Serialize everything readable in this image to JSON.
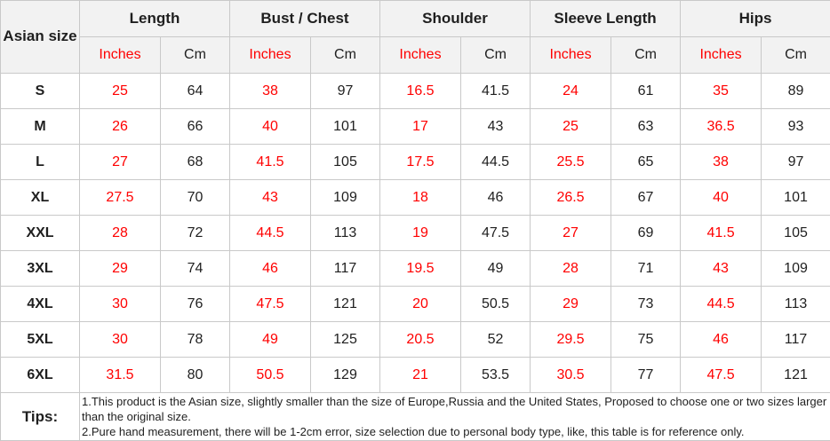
{
  "table": {
    "corner_label": "Asian size",
    "groups": [
      {
        "label": "Length",
        "inches_label": "Inches",
        "cm_label": "Cm"
      },
      {
        "label": "Bust / Chest",
        "inches_label": "Inches",
        "cm_label": "Cm"
      },
      {
        "label": "Shoulder",
        "inches_label": "Inches",
        "cm_label": "Cm"
      },
      {
        "label": "Sleeve Length",
        "inches_label": "Inches",
        "cm_label": "Cm"
      },
      {
        "label": "Hips",
        "inches_label": "Inches",
        "cm_label": "Cm"
      }
    ],
    "rows": [
      {
        "size": "S",
        "values": [
          "25",
          "64",
          "38",
          "97",
          "16.5",
          "41.5",
          "24",
          "61",
          "35",
          "89"
        ]
      },
      {
        "size": "M",
        "values": [
          "26",
          "66",
          "40",
          "101",
          "17",
          "43",
          "25",
          "63",
          "36.5",
          "93"
        ]
      },
      {
        "size": "L",
        "values": [
          "27",
          "68",
          "41.5",
          "105",
          "17.5",
          "44.5",
          "25.5",
          "65",
          "38",
          "97"
        ]
      },
      {
        "size": "XL",
        "values": [
          "27.5",
          "70",
          "43",
          "109",
          "18",
          "46",
          "26.5",
          "67",
          "40",
          "101"
        ]
      },
      {
        "size": "XXL",
        "values": [
          "28",
          "72",
          "44.5",
          "113",
          "19",
          "47.5",
          "27",
          "69",
          "41.5",
          "105"
        ]
      },
      {
        "size": "3XL",
        "values": [
          "29",
          "74",
          "46",
          "117",
          "19.5",
          "49",
          "28",
          "71",
          "43",
          "109"
        ]
      },
      {
        "size": "4XL",
        "values": [
          "30",
          "76",
          "47.5",
          "121",
          "20",
          "50.5",
          "29",
          "73",
          "44.5",
          "113"
        ]
      },
      {
        "size": "5XL",
        "values": [
          "30",
          "78",
          "49",
          "125",
          "20.5",
          "52",
          "29.5",
          "75",
          "46",
          "117"
        ]
      },
      {
        "size": "6XL",
        "values": [
          "31.5",
          "80",
          "50.5",
          "129",
          "21",
          "53.5",
          "30.5",
          "77",
          "47.5",
          "121"
        ]
      }
    ]
  },
  "tips": {
    "label": "Tips:",
    "lines": [
      "1.This product is the Asian size, slightly smaller than the size of Europe,Russia and the United States, Proposed to choose one or two sizes larger than the original size.",
      "2.Pure hand measurement, there will be 1-2cm error, size selection due to personal body type, like, this table is for reference only."
    ]
  },
  "colors": {
    "accent_red": "#ff0000",
    "text_dark": "#1f1f1f",
    "header_bg": "#f2f2f2",
    "border": "#c9c9c9"
  },
  "chart_data": {
    "type": "table",
    "title": "Asian size chart",
    "columns": [
      "Asian size",
      "Length Inches",
      "Length Cm",
      "Bust/Chest Inches",
      "Bust/Chest Cm",
      "Shoulder Inches",
      "Shoulder Cm",
      "Sleeve Length Inches",
      "Sleeve Length Cm",
      "Hips Inches",
      "Hips Cm"
    ],
    "rows": [
      [
        "S",
        25,
        64,
        38,
        97,
        16.5,
        41.5,
        24,
        61,
        35,
        89
      ],
      [
        "M",
        26,
        66,
        40,
        101,
        17,
        43,
        25,
        63,
        36.5,
        93
      ],
      [
        "L",
        27,
        68,
        41.5,
        105,
        17.5,
        44.5,
        25.5,
        65,
        38,
        97
      ],
      [
        "XL",
        27.5,
        70,
        43,
        109,
        18,
        46,
        26.5,
        67,
        40,
        101
      ],
      [
        "XXL",
        28,
        72,
        44.5,
        113,
        19,
        47.5,
        27,
        69,
        41.5,
        105
      ],
      [
        "3XL",
        29,
        74,
        46,
        117,
        19.5,
        49,
        28,
        71,
        43,
        109
      ],
      [
        "4XL",
        30,
        76,
        47.5,
        121,
        20,
        50.5,
        29,
        73,
        44.5,
        113
      ],
      [
        "5XL",
        30,
        78,
        49,
        125,
        20.5,
        52,
        29.5,
        75,
        46,
        117
      ],
      [
        "6XL",
        31.5,
        80,
        50.5,
        129,
        21,
        53.5,
        30.5,
        77,
        47.5,
        121
      ]
    ],
    "notes": [
      "1.This product is the Asian size, slightly smaller than the size of Europe,Russia and the United States, Proposed to choose one or two sizes larger than the original size.",
      "2.Pure hand measurement, there will be 1-2cm error, size selection due to personal body type, like, this table is for reference only."
    ]
  }
}
